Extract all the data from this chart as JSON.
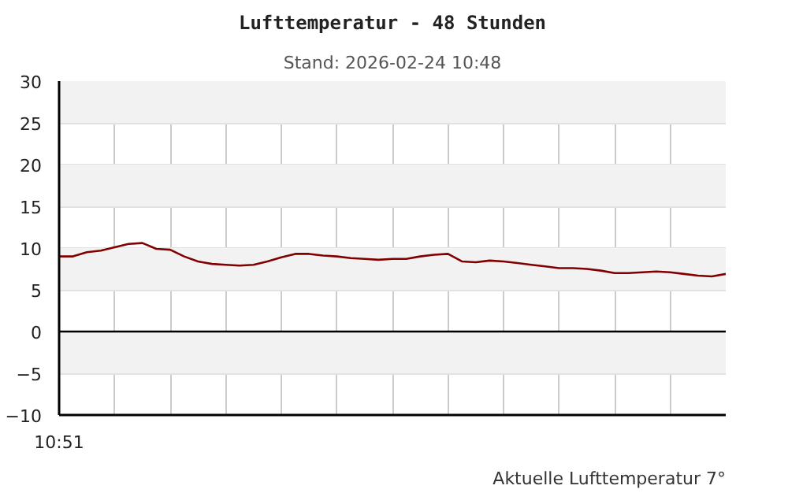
{
  "chart_data": {
    "type": "line",
    "title": "Lufttemperatur - 48 Stunden",
    "subtitle": "Stand: 2026-02-24 10:48",
    "annotations": [
      "Aktuelle Lufttemperatur 7°"
    ],
    "categories": [
      "10:51",
      null,
      null,
      null,
      null,
      null,
      null,
      null,
      null,
      null,
      null,
      null,
      null,
      null,
      null,
      null,
      null,
      null,
      null,
      null,
      null,
      null,
      null,
      null,
      null,
      null,
      null,
      null,
      null,
      null,
      null,
      null,
      null,
      null,
      null,
      null,
      null,
      null,
      null,
      null,
      null,
      null,
      null,
      null,
      null,
      null,
      null,
      null,
      null
    ],
    "series": [
      {
        "color": "#800000",
        "values": [
          9.0,
          9.0,
          9.5,
          9.7,
          10.1,
          10.5,
          10.6,
          9.9,
          9.8,
          9.0,
          8.4,
          8.1,
          8.0,
          7.9,
          8.0,
          8.4,
          8.9,
          9.3,
          9.3,
          9.1,
          9.0,
          8.8,
          8.7,
          8.6,
          8.7,
          8.7,
          9.0,
          9.2,
          9.3,
          8.4,
          8.3,
          8.5,
          8.4,
          8.2,
          8.0,
          7.8,
          7.6,
          7.6,
          7.5,
          7.3,
          7.0,
          7.0,
          7.1,
          7.2,
          7.1,
          6.9,
          6.7,
          6.6,
          6.9
        ]
      }
    ],
    "ylim": [
      -10,
      30
    ],
    "yticks": [
      -10,
      -5,
      0,
      5,
      10,
      15,
      20,
      25,
      30
    ],
    "bands": [
      {
        "axis": "y",
        "from": 25,
        "to": 30,
        "color": "#f2f2f2"
      },
      {
        "axis": "y",
        "from": 15,
        "to": 20,
        "color": "#f2f2f2"
      },
      {
        "axis": "y",
        "from": 5,
        "to": 10,
        "color": "#f2f2f2"
      },
      {
        "axis": "y",
        "from": -5,
        "to": 0,
        "color": "#f2f2f2"
      }
    ],
    "ref_lines": [
      {
        "axis": "y",
        "value": 0,
        "color": "#000000"
      }
    ],
    "grid": true,
    "marker": "none",
    "line_style": "solid"
  }
}
